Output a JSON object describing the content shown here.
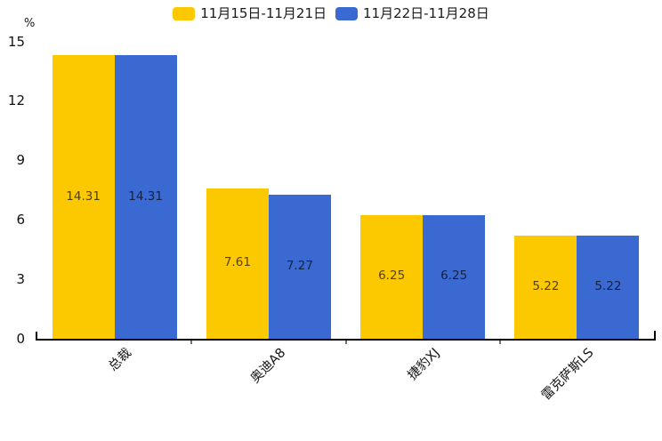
{
  "chart_data": {
    "type": "bar",
    "title": "",
    "ylabel": "%",
    "categories": [
      "总裁",
      "奥迪A8",
      "捷豹XJ",
      "雷克萨斯LS"
    ],
    "series": [
      {
        "name": "11月15日-11月21日",
        "color": "#FCC800",
        "values": [
          14.31,
          7.61,
          6.25,
          5.22
        ]
      },
      {
        "name": "11月22日-11月28日",
        "color": "#3A69D1",
        "values": [
          14.31,
          7.27,
          6.25,
          5.22
        ]
      }
    ],
    "yticks": [
      0,
      3,
      6,
      9,
      12,
      15
    ],
    "ylim": [
      0,
      15
    ],
    "legend_position": "top",
    "grid": false,
    "value_labels": true,
    "value_label_format": "2-decimals"
  },
  "colors": {
    "axis_line": "#000000",
    "axis_tick": "#737373",
    "text": "#1a1a1a"
  }
}
